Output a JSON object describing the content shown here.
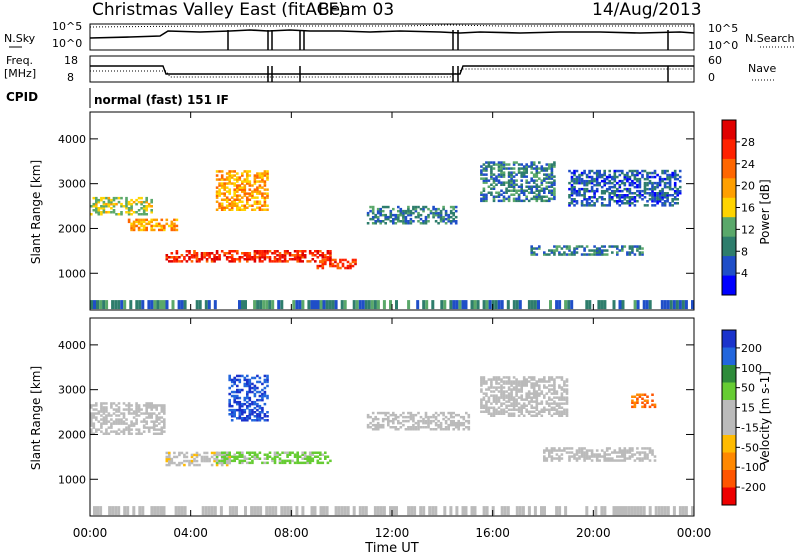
{
  "header": {
    "title": "Christmas Valley East (fitACF)",
    "beam": "Beam 03",
    "date": "14/Aug/2013"
  },
  "labels": {
    "nsky": "N.Sky",
    "nsearch": "N.Search",
    "freq_line1": "Freq.",
    "freq_line2": "[MHz]",
    "nave": "Nave",
    "cpid": "CPID",
    "mode": "normal (fast) 151 IF"
  },
  "small_axes": {
    "nsky_ticks": [
      "10^5",
      "10^0"
    ],
    "nsearch_ticks": [
      "10^5",
      "10^0"
    ],
    "freq_ticks": [
      "18",
      "8"
    ],
    "nave_ticks": [
      "60",
      "0"
    ]
  },
  "colors": {
    "power_scale": [
      "#0000ff",
      "#1f4ec8",
      "#2e7d6c",
      "#5aa86a",
      "#ffd400",
      "#ff9f00",
      "#ff6600",
      "#ff2200",
      "#e00000"
    ],
    "velocity_scale": [
      "#1a33cc",
      "#2266dd",
      "#2e8b3a",
      "#66cc33",
      "#bbbbbb",
      "#bbbbbb",
      "#ffbb00",
      "#ff8800",
      "#ff5500",
      "#ee0000"
    ],
    "frame": "#000000"
  },
  "chart_data": [
    {
      "type": "heatmap",
      "ylabel": "Slant Range [km]",
      "x_ticks": [
        "00:00",
        "04:00",
        "08:00",
        "12:00",
        "16:00",
        "20:00",
        "00:00"
      ],
      "y_ticks": [
        "1000",
        "2000",
        "3000",
        "4000"
      ],
      "ylim": [
        180,
        4600
      ],
      "colorbar": {
        "label": "Power [dB]",
        "ticks": [
          "4",
          "8",
          "12",
          "16",
          "20",
          "24",
          "28"
        ],
        "range": [
          0,
          30
        ]
      },
      "features": [
        {
          "t": [
            0.0,
            2.5
          ],
          "range": [
            2300,
            2700
          ],
          "value": 14
        },
        {
          "t": [
            1.5,
            3.5
          ],
          "range": [
            1950,
            2200
          ],
          "value": 18
        },
        {
          "t": [
            3.0,
            9.5
          ],
          "range": [
            1250,
            1500
          ],
          "value": 26
        },
        {
          "t": [
            5.0,
            7.0
          ],
          "range": [
            2400,
            3300
          ],
          "value": 18
        },
        {
          "t": [
            9.0,
            10.5
          ],
          "range": [
            1100,
            1300
          ],
          "value": 24
        },
        {
          "t": [
            11.0,
            14.5
          ],
          "range": [
            2100,
            2500
          ],
          "value": 8
        },
        {
          "t": [
            15.5,
            18.5
          ],
          "range": [
            2600,
            3500
          ],
          "value": 8
        },
        {
          "t": [
            17.5,
            22.0
          ],
          "range": [
            1400,
            1600
          ],
          "value": 8
        },
        {
          "t": [
            19.0,
            23.5
          ],
          "range": [
            2500,
            3300
          ],
          "value": 6
        }
      ]
    },
    {
      "type": "heatmap",
      "ylabel": "Slant Range [km]",
      "xlabel": "Time UT",
      "x_ticks": [
        "00:00",
        "04:00",
        "08:00",
        "12:00",
        "16:00",
        "20:00",
        "00:00"
      ],
      "y_ticks": [
        "1000",
        "2000",
        "3000",
        "4000"
      ],
      "ylim": [
        180,
        4600
      ],
      "colorbar": {
        "label": "Velocity [m s-1]",
        "ticks": [
          "200",
          "100",
          "50",
          "15",
          "-15",
          "-50",
          "-100",
          "-200"
        ],
        "range": [
          -250,
          250
        ]
      },
      "features": [
        {
          "t": [
            0.0,
            3.0
          ],
          "range": [
            2000,
            2700
          ],
          "value": 0
        },
        {
          "t": [
            3.0,
            5.5
          ],
          "range": [
            1300,
            1600
          ],
          "value": -40
        },
        {
          "t": [
            5.5,
            7.0
          ],
          "range": [
            2300,
            3300
          ],
          "value": 200
        },
        {
          "t": [
            5.0,
            9.5
          ],
          "range": [
            1350,
            1600
          ],
          "value": 60
        },
        {
          "t": [
            11.0,
            15.0
          ],
          "range": [
            2100,
            2500
          ],
          "value": 0
        },
        {
          "t": [
            15.5,
            19.0
          ],
          "range": [
            2400,
            3300
          ],
          "value": 0
        },
        {
          "t": [
            18.0,
            22.5
          ],
          "range": [
            1400,
            1700
          ],
          "value": 0
        },
        {
          "t": [
            21.5,
            22.5
          ],
          "range": [
            2600,
            2900
          ],
          "value": -150
        }
      ]
    }
  ]
}
